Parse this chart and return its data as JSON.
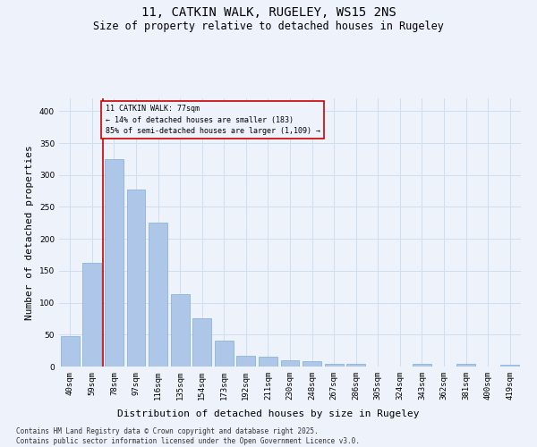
{
  "title": "11, CATKIN WALK, RUGELEY, WS15 2NS",
  "subtitle": "Size of property relative to detached houses in Rugeley",
  "xlabel": "Distribution of detached houses by size in Rugeley",
  "ylabel": "Number of detached properties",
  "categories": [
    "40sqm",
    "59sqm",
    "78sqm",
    "97sqm",
    "116sqm",
    "135sqm",
    "154sqm",
    "173sqm",
    "192sqm",
    "211sqm",
    "230sqm",
    "248sqm",
    "267sqm",
    "286sqm",
    "305sqm",
    "324sqm",
    "343sqm",
    "362sqm",
    "381sqm",
    "400sqm",
    "419sqm"
  ],
  "values": [
    48,
    163,
    325,
    277,
    225,
    113,
    75,
    40,
    17,
    15,
    10,
    8,
    4,
    4,
    0,
    0,
    4,
    0,
    4,
    0,
    3
  ],
  "bar_color": "#aec6e8",
  "bar_edge_color": "#7dafd8",
  "grid_color": "#d0dff0",
  "background_color": "#eef2fb",
  "property_line_x": 1.5,
  "property_line_color": "#cc0000",
  "annotation_text": "11 CATKIN WALK: 77sqm\n← 14% of detached houses are smaller (183)\n85% of semi-detached houses are larger (1,109) →",
  "annotation_box_color": "#cc0000",
  "ylim": [
    0,
    420
  ],
  "yticks": [
    0,
    50,
    100,
    150,
    200,
    250,
    300,
    350,
    400
  ],
  "footer": "Contains HM Land Registry data © Crown copyright and database right 2025.\nContains public sector information licensed under the Open Government Licence v3.0.",
  "title_fontsize": 10,
  "subtitle_fontsize": 8.5,
  "axis_label_fontsize": 8,
  "tick_fontsize": 6.5,
  "footer_fontsize": 5.5
}
